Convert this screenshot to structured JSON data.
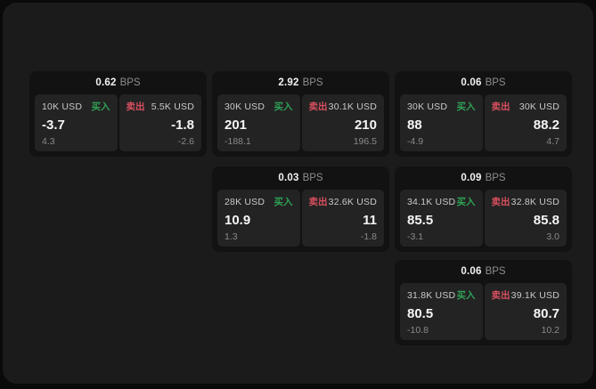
{
  "app": {
    "unit_label": "BPS",
    "buy_label": "买入",
    "sell_label": "卖出"
  },
  "colors": {
    "buy_green": "#2fa155",
    "sell_red": "#d8505f",
    "surface": "#1b1b1b",
    "card": "#121212",
    "panel": "#232323"
  },
  "cards": [
    {
      "row": 1,
      "col": 1,
      "bps": "0.62",
      "buy": {
        "amount": "10K USD",
        "value": "-3.7",
        "change": "4.3"
      },
      "sell": {
        "amount": "5.5K USD",
        "value": "-1.8",
        "change": "-2.6"
      }
    },
    {
      "row": 1,
      "col": 2,
      "bps": "2.92",
      "buy": {
        "amount": "30K USD",
        "value": "201",
        "change": "-188.1"
      },
      "sell": {
        "amount": "30.1K USD",
        "value": "210",
        "change": "196.5"
      }
    },
    {
      "row": 1,
      "col": 3,
      "bps": "0.06",
      "buy": {
        "amount": "30K USD",
        "value": "88",
        "change": "-4.9"
      },
      "sell": {
        "amount": "30K USD",
        "value": "88.2",
        "change": "4.7"
      }
    },
    {
      "row": 2,
      "col": 2,
      "bps": "0.03",
      "buy": {
        "amount": "28K USD",
        "value": "10.9",
        "change": "1.3"
      },
      "sell": {
        "amount": "32.6K USD",
        "value": "11",
        "change": "-1.8"
      }
    },
    {
      "row": 2,
      "col": 3,
      "bps": "0.09",
      "buy": {
        "amount": "34.1K USD",
        "value": "85.5",
        "change": "-3.1"
      },
      "sell": {
        "amount": "32.8K USD",
        "value": "85.8",
        "change": "3.0"
      }
    },
    {
      "row": 3,
      "col": 3,
      "bps": "0.06",
      "buy": {
        "amount": "31.8K USD",
        "value": "80.5",
        "change": "-10.8"
      },
      "sell": {
        "amount": "39.1K USD",
        "value": "80.7",
        "change": "10.2"
      }
    }
  ]
}
